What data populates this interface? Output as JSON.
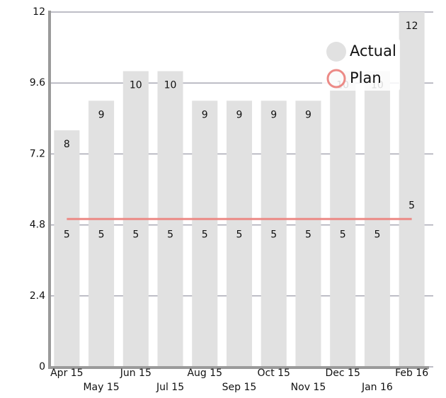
{
  "chart_data": {
    "type": "bar",
    "categories": [
      "Apr 15",
      "May 15",
      "Jun 15",
      "Jul 15",
      "Aug 15",
      "Sep 15",
      "Oct 15",
      "Nov 15",
      "Dec 15",
      "Jan 16",
      "Feb 16"
    ],
    "series": [
      {
        "name": "Actual",
        "type": "bar",
        "color": "#e1e1e1",
        "values": [
          8,
          9,
          10,
          10,
          9,
          9,
          9,
          9,
          10,
          10,
          12
        ]
      },
      {
        "name": "Plan",
        "type": "line",
        "color": "#ec8a86",
        "values": [
          5,
          5,
          5,
          5,
          5,
          5,
          5,
          5,
          5,
          5,
          5
        ]
      }
    ],
    "ylim": [
      0,
      12
    ],
    "yticks": [
      0,
      2.4,
      4.8,
      7.2,
      9.6,
      12
    ],
    "grid": true,
    "legend": "top-right"
  }
}
